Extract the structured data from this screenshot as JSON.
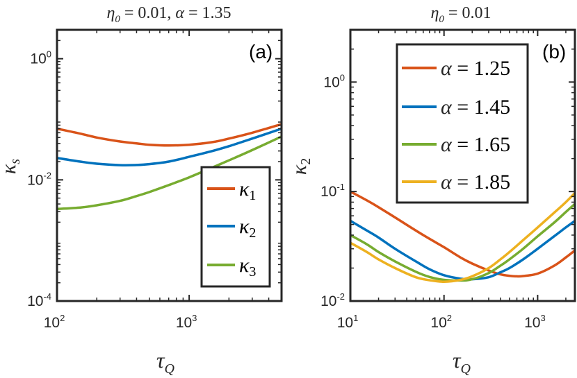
{
  "chart_data": [
    {
      "type": "line",
      "panel": "(a)",
      "title": "η₀ = 0.01, α = 1.35",
      "title_parts": {
        "eta_sym": "η",
        "eta_sub": "0",
        "eta_val": " = 0.01, ",
        "alpha_sym": "α",
        "alpha_val": " = 1.35"
      },
      "xlabel": {
        "sym": "τ",
        "sub": "Q"
      },
      "ylabel": {
        "sym": "κ",
        "sub": "s"
      },
      "xscale": "log",
      "yscale": "log",
      "xlim": [
        100,
        5000
      ],
      "ylim": [
        0.0001,
        3
      ],
      "xticks": [
        {
          "base": "10",
          "exp": "2",
          "value": 100
        },
        {
          "base": "10",
          "exp": "3",
          "value": 1000
        }
      ],
      "yticks": [
        {
          "base": "10",
          "exp": "0",
          "value": 1
        },
        {
          "base": "10",
          "exp": "-2",
          "value": 0.01
        },
        {
          "base": "10",
          "exp": "-4",
          "value": 0.0001
        }
      ],
      "legend_position": "bottom-right",
      "series": [
        {
          "name": "κ1",
          "sym": "κ",
          "sub": "1",
          "color": "#D95319",
          "x": [
            100,
            150,
            200,
            300,
            400,
            500,
            700,
            1000,
            1500,
            2000,
            3000,
            5000
          ],
          "y": [
            0.07,
            0.058,
            0.05,
            0.043,
            0.04,
            0.038,
            0.037,
            0.038,
            0.042,
            0.048,
            0.06,
            0.083
          ]
        },
        {
          "name": "κ2",
          "sym": "κ",
          "sub": "2",
          "color": "#0072BD",
          "x": [
            100,
            150,
            200,
            300,
            400,
            500,
            700,
            1000,
            1500,
            2000,
            3000,
            5000
          ],
          "y": [
            0.023,
            0.02,
            0.0185,
            0.0175,
            0.0176,
            0.0182,
            0.02,
            0.024,
            0.03,
            0.036,
            0.048,
            0.07
          ]
        },
        {
          "name": "κ3",
          "sym": "κ",
          "sub": "3",
          "color": "#77AC30",
          "x": [
            100,
            150,
            200,
            300,
            400,
            500,
            700,
            1000,
            1500,
            2000,
            3000,
            5000
          ],
          "y": [
            0.0033,
            0.0035,
            0.0038,
            0.0045,
            0.0054,
            0.0063,
            0.0082,
            0.011,
            0.016,
            0.021,
            0.031,
            0.052
          ]
        }
      ]
    },
    {
      "type": "line",
      "panel": "(b)",
      "title": "η₀ = 0.01",
      "title_parts": {
        "eta_sym": "η",
        "eta_sub": "0",
        "eta_val": " = 0.01"
      },
      "xlabel": {
        "sym": "τ",
        "sub": "Q"
      },
      "ylabel": {
        "sym": "κ",
        "sub": "2"
      },
      "xscale": "log",
      "yscale": "log",
      "xlim": [
        10,
        2500
      ],
      "ylim": [
        0.01,
        3
      ],
      "xticks": [
        {
          "base": "10",
          "exp": "1",
          "value": 10
        },
        {
          "base": "10",
          "exp": "2",
          "value": 100
        },
        {
          "base": "10",
          "exp": "3",
          "value": 1000
        }
      ],
      "yticks": [
        {
          "base": "10",
          "exp": "0",
          "value": 1
        },
        {
          "base": "10",
          "exp": "-1",
          "value": 0.1
        },
        {
          "base": "10",
          "exp": "-2",
          "value": 0.01
        }
      ],
      "legend_position": "top-right",
      "series": [
        {
          "name": "α = 1.25",
          "sym": "α",
          "val": " = 1.25",
          "color": "#D95319",
          "x": [
            10,
            15,
            20,
            30,
            50,
            70,
            100,
            150,
            200,
            300,
            400,
            500,
            600,
            700,
            1000,
            1500,
            2000,
            2500
          ],
          "y": [
            0.1,
            0.083,
            0.072,
            0.058,
            0.044,
            0.037,
            0.031,
            0.025,
            0.022,
            0.019,
            0.0175,
            0.017,
            0.0168,
            0.0169,
            0.0178,
            0.021,
            0.025,
            0.029
          ]
        },
        {
          "name": "α = 1.45",
          "sym": "α",
          "val": " = 1.45",
          "color": "#0072BD",
          "x": [
            10,
            15,
            20,
            30,
            50,
            70,
            100,
            150,
            200,
            300,
            400,
            500,
            700,
            1000,
            1500,
            2000,
            2500
          ],
          "y": [
            0.054,
            0.044,
            0.038,
            0.03,
            0.023,
            0.0195,
            0.0172,
            0.016,
            0.0158,
            0.0165,
            0.0183,
            0.02,
            0.024,
            0.03,
            0.039,
            0.047,
            0.054
          ]
        },
        {
          "name": "α = 1.65",
          "sym": "α",
          "val": " = 1.65",
          "color": "#77AC30",
          "x": [
            10,
            15,
            20,
            30,
            50,
            70,
            100,
            150,
            200,
            300,
            400,
            500,
            700,
            1000,
            1500,
            2000,
            2500
          ],
          "y": [
            0.04,
            0.033,
            0.028,
            0.023,
            0.0185,
            0.0166,
            0.0156,
            0.0154,
            0.0158,
            0.018,
            0.021,
            0.024,
            0.03,
            0.039,
            0.052,
            0.065,
            0.077
          ]
        },
        {
          "name": "α = 1.85",
          "sym": "α",
          "val": " = 1.85",
          "color": "#EDB120",
          "x": [
            10,
            15,
            20,
            30,
            50,
            70,
            100,
            150,
            200,
            300,
            400,
            500,
            700,
            1000,
            1500,
            2000,
            2500
          ],
          "y": [
            0.034,
            0.028,
            0.024,
            0.02,
            0.0165,
            0.0155,
            0.015,
            0.0156,
            0.0168,
            0.02,
            0.024,
            0.028,
            0.036,
            0.047,
            0.064,
            0.08,
            0.097
          ]
        }
      ]
    }
  ]
}
